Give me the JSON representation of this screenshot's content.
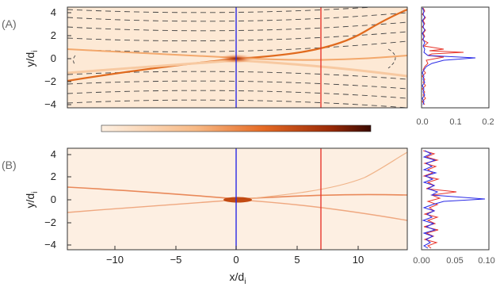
{
  "chart_data": [
    {
      "type": "heatmap",
      "panel_label": "(A)",
      "xlim": [
        -14,
        14
      ],
      "ylim": [
        -4.4,
        4.4
      ],
      "xticks": [
        -10,
        -5,
        0,
        5,
        10
      ],
      "yticks": [
        "4",
        "2",
        "0",
        "−2",
        "−4"
      ],
      "ylabel": "y/d",
      "ylabel_sub": "i",
      "colormap": "orange",
      "field_lines": "dashed",
      "cut_lines": [
        {
          "x": 0,
          "color": "#2a2ae6"
        },
        {
          "x": 7,
          "color": "#e8382e"
        }
      ]
    },
    {
      "type": "line",
      "panel": "(A) profile",
      "xticks": [
        "0.0",
        "0.1",
        "0.2"
      ],
      "xlim": [
        0,
        0.2
      ],
      "ylim": [
        -4.4,
        4.4
      ],
      "series": [
        {
          "color": "#2a2ae6",
          "peak_y": 0.0,
          "peak_value": 0.19
        },
        {
          "color": "#e8382e",
          "peak_y": 0.7,
          "peak_value": 0.16
        }
      ]
    },
    {
      "type": "heatmap",
      "panel_label": "(B)",
      "xlim": [
        -14,
        14
      ],
      "ylim": [
        -4.4,
        4.4
      ],
      "xticks": [
        "−10",
        "−5",
        "0",
        "5",
        "10"
      ],
      "yticks": [
        "4",
        "2",
        "0",
        "−2",
        "−4"
      ],
      "xlabel": "x/d",
      "xlabel_sub": "i",
      "ylabel": "y/d",
      "ylabel_sub": "i",
      "colormap": "orange",
      "cut_lines": [
        {
          "x": 0,
          "color": "#2a2ae6"
        },
        {
          "x": 7,
          "color": "#e8382e"
        }
      ]
    },
    {
      "type": "line",
      "panel": "(B) profile",
      "xticks": [
        "0.00",
        "0.05",
        "0.10"
      ],
      "xlim": [
        0,
        0.1
      ],
      "ylim": [
        -4.4,
        4.4
      ],
      "series": [
        {
          "color": "#2a2ae6",
          "peak_y": 0.0,
          "peak_value": 0.098
        },
        {
          "color": "#e8382e",
          "peak_y": 0.5,
          "peak_value": 0.045
        }
      ]
    }
  ],
  "colorbar": {
    "from": "#fde9d6",
    "to": "#3a0a02"
  },
  "colors": {
    "blue_cut": "#2a2ae6",
    "red_cut": "#e8382e",
    "sheet": "#e06a1e"
  }
}
